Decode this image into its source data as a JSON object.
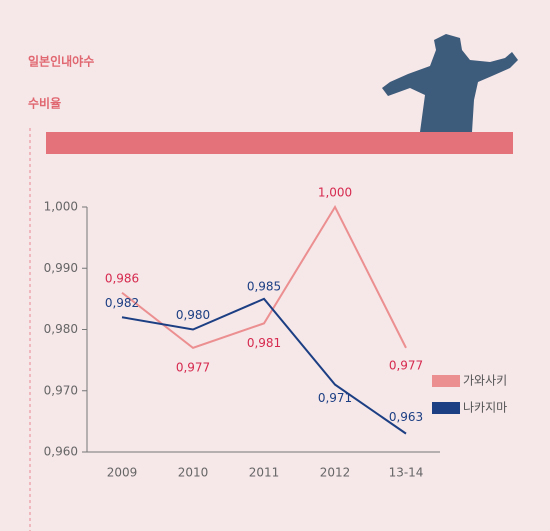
{
  "chart_data": {
    "type": "line",
    "title": "일본인내야수",
    "subtitle": "수비율",
    "categories": [
      "2009",
      "2010",
      "2011",
      "2012",
      "13-14"
    ],
    "series": [
      {
        "name": "가와사키",
        "color": "#ec8f90",
        "label_color": "#d62a4e",
        "values": [
          0.986,
          0.977,
          0.981,
          1.0,
          0.977
        ],
        "value_labels": [
          "0,986",
          "0,977",
          "0,981",
          "1,000",
          "0,977"
        ]
      },
      {
        "name": "나카지마",
        "color": "#1c3f83",
        "label_color": "#1c3f83",
        "values": [
          0.982,
          0.98,
          0.985,
          0.971,
          0.963
        ],
        "value_labels": [
          "0,982",
          "0,980",
          "0,985",
          "0,971",
          "0,963"
        ]
      }
    ],
    "ylim": [
      0.96,
      1.0
    ],
    "yticks": [
      {
        "value": 0.96,
        "label": "0,960"
      },
      {
        "value": 0.97,
        "label": "0,970"
      },
      {
        "value": 0.98,
        "label": "0,980"
      },
      {
        "value": 0.99,
        "label": "0,990"
      },
      {
        "value": 1.0,
        "label": "1,000"
      }
    ],
    "grid": false
  }
}
